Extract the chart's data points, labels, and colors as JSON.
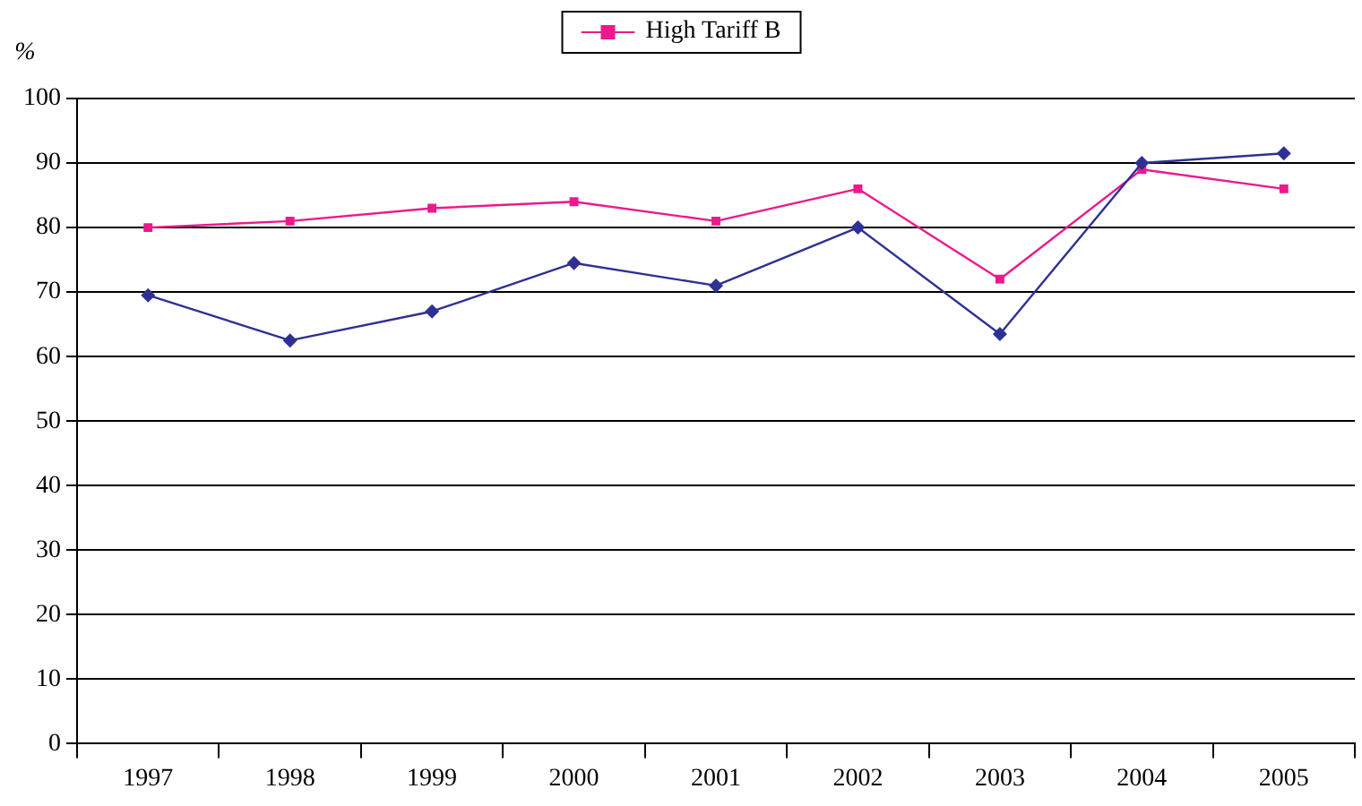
{
  "chart_data": {
    "type": "line",
    "ylabel": "%",
    "categories": [
      "1997",
      "1998",
      "1999",
      "2000",
      "2001",
      "2002",
      "2003",
      "2004",
      "2005"
    ],
    "series": [
      {
        "color": "#2e3192",
        "marker": "diamond",
        "values": [
          69.5,
          62.5,
          67,
          74.5,
          71,
          80,
          63.5,
          90,
          91.5
        ]
      },
      {
        "name": "High Tariff B",
        "color": "#ec198c",
        "marker": "square",
        "values": [
          80,
          81,
          83,
          84,
          81,
          86,
          72,
          89,
          86
        ]
      }
    ],
    "ylim": [
      0,
      100
    ],
    "yticks": [
      0,
      10,
      20,
      30,
      40,
      50,
      60,
      70,
      80,
      90,
      100
    ],
    "grid": "y",
    "legend": "top",
    "line_style": "solid"
  }
}
